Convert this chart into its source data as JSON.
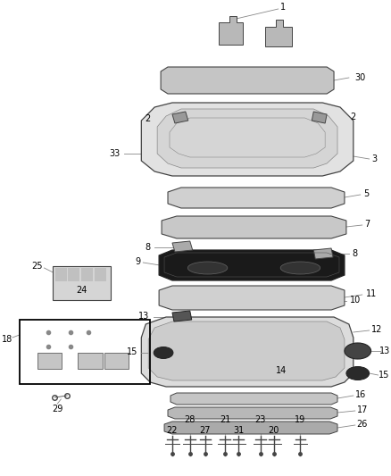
{
  "bg_color": "#ffffff",
  "fig_width": 4.38,
  "fig_height": 5.33,
  "dpi": 100,
  "lc": "#444444",
  "lgray": "#888888",
  "dgray": "#222222",
  "parts_color": "#d8d8d8",
  "dark_color": "#1a1a1a"
}
